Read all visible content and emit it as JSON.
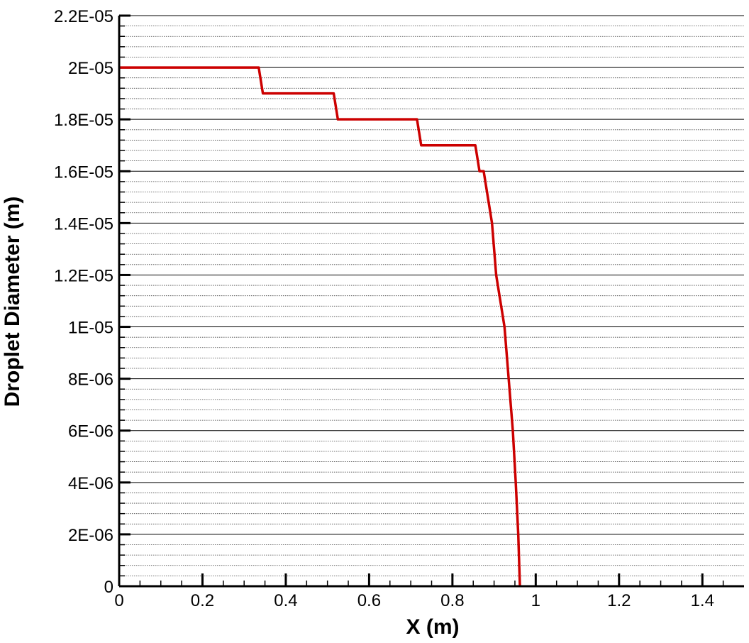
{
  "chart_data": {
    "type": "line",
    "title": "",
    "xlabel": "X (m)",
    "ylabel": "Droplet Diameter (m)",
    "xlim": [
      0,
      1.5
    ],
    "ylim": [
      0,
      2.2e-05
    ],
    "x_major_ticks": [
      0,
      0.2,
      0.4,
      0.6,
      0.8,
      1,
      1.2,
      1.4
    ],
    "x_tick_labels": [
      "0",
      "0.2",
      "0.4",
      "0.6",
      "0.8",
      "1",
      "1.2",
      "1.4"
    ],
    "x_minor_step": 0.05,
    "y_major_ticks": [
      0,
      2e-06,
      4e-06,
      6e-06,
      8e-06,
      1e-05,
      1.2e-05,
      1.4e-05,
      1.6e-05,
      1.8e-05,
      2e-05,
      2.2e-05
    ],
    "y_tick_labels": [
      "0",
      "2E-06",
      "4E-06",
      "6E-06",
      "8E-06",
      "1E-05",
      "1.2E-05",
      "1.4E-05",
      "1.6E-05",
      "1.8E-05",
      "2E-05",
      "2.2E-05"
    ],
    "y_minor_step": 4e-07,
    "grid": true,
    "legend": "none",
    "series": [
      {
        "color": "#cc0000",
        "x": [
          0.0,
          0.335,
          0.345,
          0.515,
          0.525,
          0.715,
          0.725,
          0.855,
          0.865,
          0.875,
          0.885,
          0.895,
          0.9,
          0.905,
          0.915,
          0.925,
          0.935,
          0.945,
          0.952,
          0.958,
          0.962
        ],
        "y": [
          2e-05,
          2e-05,
          1.9e-05,
          1.9e-05,
          1.8e-05,
          1.8e-05,
          1.7e-05,
          1.7e-05,
          1.6e-05,
          1.6e-05,
          1.5e-05,
          1.4e-05,
          1.3e-05,
          1.2e-05,
          1.1e-05,
          1e-05,
          8e-06,
          6e-06,
          4e-06,
          2e-06,
          0
        ]
      }
    ]
  }
}
